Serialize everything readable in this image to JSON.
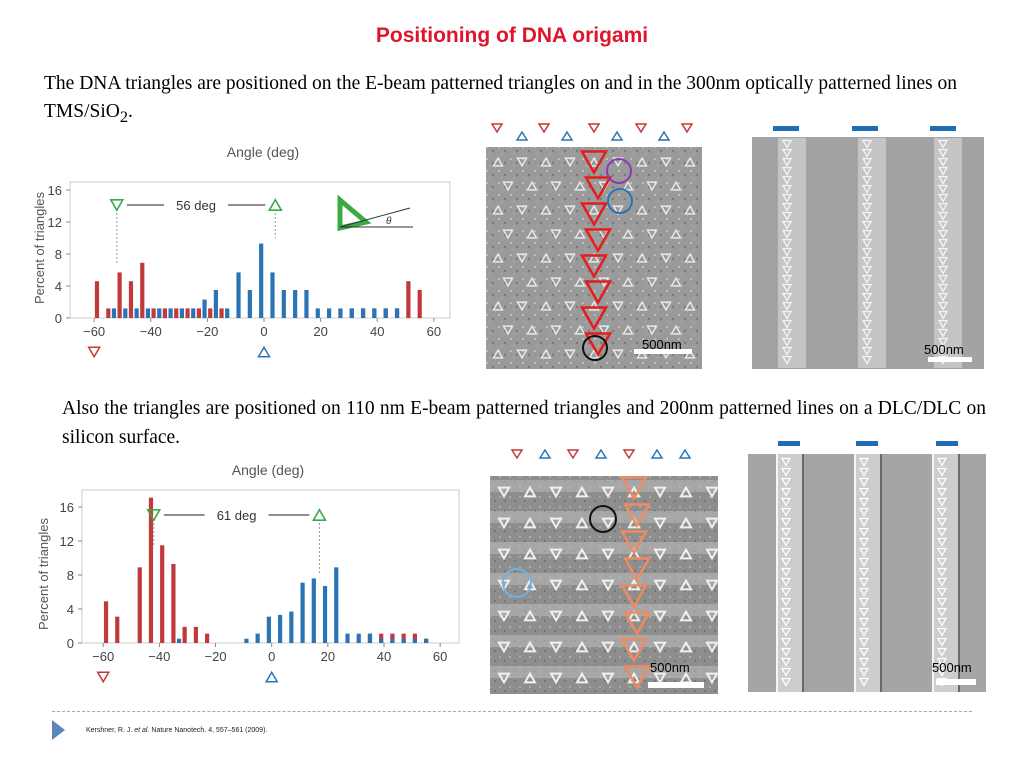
{
  "slide": {
    "title": "Positioning of DNA origami",
    "para1_text": "The DNA triangles are positioned on the E-beam patterned triangles on and  in the 300nm optically patterned lines on TMS/SiO",
    "para1_sub": "2",
    "para1_end": ".",
    "para2": "Also the triangles are positioned on 110 nm E-beam patterned triangles and 200nm patterned lines on a DLC/DLC on silicon surface.",
    "footer_prefix": "Kershner, R. J. ",
    "footer_italic": "et al.",
    "footer_suffix": " Nature Nanotech. 4, 557–561 (2009).",
    "scale_labels": [
      "500nm",
      "500nm",
      "500nm",
      "500nm"
    ]
  },
  "colors": {
    "red": "#c0393b",
    "blue": "#2a74b5",
    "green": "#3aaa45",
    "title_red": "#e0142a"
  },
  "chart_data": [
    {
      "type": "bar",
      "title": "Angle (deg)",
      "xlabel": "Angle (deg)",
      "ylabel": "Percent of triangles",
      "xlim": [
        -65,
        65
      ],
      "ylim": [
        0,
        17
      ],
      "xticks": [
        -60,
        -40,
        -20,
        0,
        20,
        40,
        60
      ],
      "yticks": [
        0,
        4,
        8,
        12,
        16
      ],
      "annotation": "56 deg",
      "annotation_marks": [
        -52,
        4
      ],
      "series": [
        {
          "color": "#c0393b",
          "x": [
            -59,
            -55,
            -51,
            -47,
            -43,
            -39,
            -35,
            -31,
            -27,
            -23,
            -19,
            -15,
            31,
            35,
            39,
            43,
            47,
            51,
            55
          ],
          "values": [
            4.6,
            1.2,
            5.7,
            4.6,
            6.9,
            1.2,
            1.2,
            1.2,
            1.2,
            1.2,
            1.2,
            1.2,
            1.2,
            1.2,
            1.2,
            1.2,
            1.2,
            4.6,
            3.5
          ]
        },
        {
          "color": "#2a74b5",
          "x": [
            -53,
            -49,
            -45,
            -41,
            -37,
            -33,
            -29,
            -25,
            -21,
            -17,
            -13,
            -9,
            -5,
            -1,
            3,
            7,
            11,
            15,
            19,
            23,
            27,
            31,
            35,
            39,
            43,
            47
          ],
          "values": [
            1.2,
            1.2,
            1.2,
            1.2,
            1.2,
            1.2,
            1.2,
            1.2,
            2.3,
            3.5,
            1.2,
            5.7,
            3.5,
            9.3,
            5.7,
            3.5,
            3.5,
            3.5,
            1.2,
            1.2,
            1.2,
            1.2,
            1.2,
            1.2,
            1.2,
            1.2
          ]
        }
      ]
    },
    {
      "type": "bar",
      "title": "Angle (deg)",
      "xlabel": "Angle (deg)",
      "ylabel": "Percent of triangles",
      "xlim": [
        -64,
        66
      ],
      "ylim": [
        0,
        18
      ],
      "xticks": [
        -60,
        -40,
        -20,
        0,
        20,
        40,
        60
      ],
      "yticks": [
        0,
        4,
        8,
        12,
        16
      ],
      "annotation": "61 deg",
      "annotation_marks": [
        -42,
        17
      ],
      "series": [
        {
          "color": "#c0393b",
          "x": [
            -59,
            -55,
            -47,
            -43,
            -39,
            -35,
            -31,
            -27,
            -23,
            35,
            39,
            43,
            47,
            51,
            55
          ],
          "values": [
            4.9,
            3.1,
            8.9,
            17.1,
            11.5,
            9.3,
            1.9,
            1.9,
            1.1,
            1.1,
            1.1,
            1.1,
            1.1,
            1.1,
            0.5
          ]
        },
        {
          "color": "#2a74b5",
          "x": [
            -33,
            -9,
            -5,
            -1,
            3,
            7,
            11,
            15,
            19,
            23,
            27,
            31,
            35,
            39,
            43,
            47,
            51,
            55
          ],
          "values": [
            0.5,
            0.5,
            1.1,
            3.1,
            3.3,
            3.7,
            7.1,
            7.6,
            6.7,
            8.9,
            1.1,
            1.1,
            1.1,
            0.5,
            0.5,
            0.5,
            0.5,
            0.5
          ]
        }
      ]
    }
  ]
}
